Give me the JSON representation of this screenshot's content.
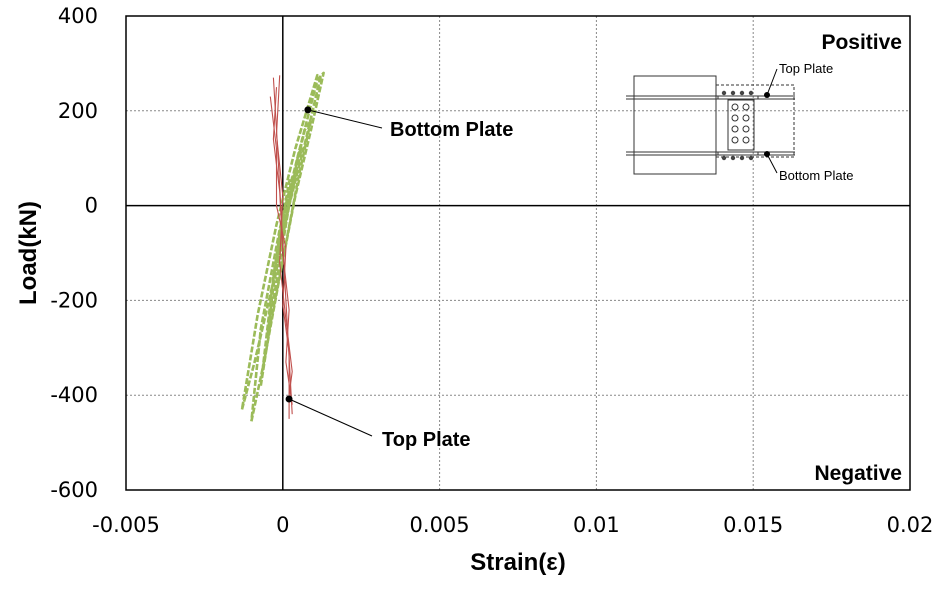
{
  "chart_data": {
    "type": "line",
    "xlabel": "Strain(ε)",
    "ylabel": "Load(kN)",
    "xlim": [
      -0.005,
      0.02
    ],
    "ylim": [
      -600,
      400
    ],
    "x_ticks": [
      -0.005,
      0,
      0.005,
      0.01,
      0.015,
      0.02
    ],
    "x_tick_labels": [
      "-0.005",
      "0",
      "0.005",
      "0.01",
      "0.015",
      "0.02"
    ],
    "y_ticks": [
      -600,
      -400,
      -200,
      0,
      200,
      400
    ],
    "y_tick_labels": [
      "-600",
      "-400",
      "-200",
      "0",
      "200",
      "400"
    ],
    "grid": true,
    "corner_labels": {
      "top_right": "Positive",
      "bottom_right": "Negative"
    },
    "annotations": [
      {
        "text": "Bottom Plate",
        "x": 0.0008,
        "y": 202
      },
      {
        "text": "Top Plate",
        "x": 0.0002,
        "y": -408
      }
    ],
    "inset": {
      "top_label": "Top Plate",
      "bottom_label": "Bottom Plate"
    },
    "series": [
      {
        "color": "#9bbb59",
        "style": "dashed",
        "loops": [
          {
            "x": [
              -0.0013,
              -0.0009,
              -0.0003,
              0.0002,
              0.0007,
              0.0012,
              0.0011,
              0.0004,
              -0.0002,
              -0.0008,
              -0.0013
            ],
            "y": [
              -430,
              -330,
              -160,
              0,
              130,
              270,
              275,
              120,
              -40,
              -230,
              -430
            ]
          },
          {
            "x": [
              -0.001,
              -0.0006,
              -0.0001,
              0.0004,
              0.0009,
              0.0013,
              0.0011,
              0.0005,
              -0.0001,
              -0.0007,
              -0.001
            ],
            "y": [
              -455,
              -330,
              -150,
              20,
              160,
              280,
              265,
              110,
              -50,
              -260,
              -455
            ]
          },
          {
            "x": [
              -0.0007,
              -0.0004,
              0.0001,
              0.0005,
              0.0009,
              0.0007,
              0.0002,
              -0.0003,
              -0.0007
            ],
            "y": [
              -380,
              -250,
              -80,
              60,
              180,
              160,
              20,
              -150,
              -380
            ]
          },
          {
            "x": [
              -0.0005,
              -0.0002,
              0.0002,
              0.0006,
              0.0005,
              0.0001,
              -0.0003,
              -0.0005
            ],
            "y": [
              -280,
              -160,
              0,
              120,
              110,
              -30,
              -170,
              -280
            ]
          },
          {
            "x": [
              -0.0003,
              0.0,
              0.0003,
              0.0002,
              -0.0001,
              -0.0003
            ],
            "y": [
              -150,
              -40,
              60,
              50,
              -60,
              -150
            ]
          }
        ]
      },
      {
        "color": "#c0504d",
        "style": "solid",
        "loops": [
          {
            "x": [
              -0.0003,
              -0.0002,
              -0.0001,
              0.0,
              0.0001,
              0.0002,
              0.0003
            ],
            "y": [
              270,
              160,
              40,
              -80,
              -200,
              -320,
              -440
            ]
          },
          {
            "x": [
              -0.0002,
              -0.0003,
              -0.0001,
              0.0,
              0.0002,
              0.0001,
              0.0003
            ],
            "y": [
              250,
              140,
              30,
              -100,
              -220,
              -330,
              -420
            ]
          },
          {
            "x": [
              -0.0004,
              -0.0002,
              -0.0002,
              0.0001,
              0.0,
              0.0002,
              0.0002
            ],
            "y": [
              230,
              120,
              0,
              -90,
              -210,
              -310,
              -450
            ]
          },
          {
            "x": [
              -0.0001,
              -0.0002,
              0.0,
              -0.0001,
              0.0001,
              0.0003,
              0.0002
            ],
            "y": [
              275,
              150,
              20,
              -120,
              -240,
              -350,
              -400
            ]
          }
        ]
      }
    ]
  }
}
